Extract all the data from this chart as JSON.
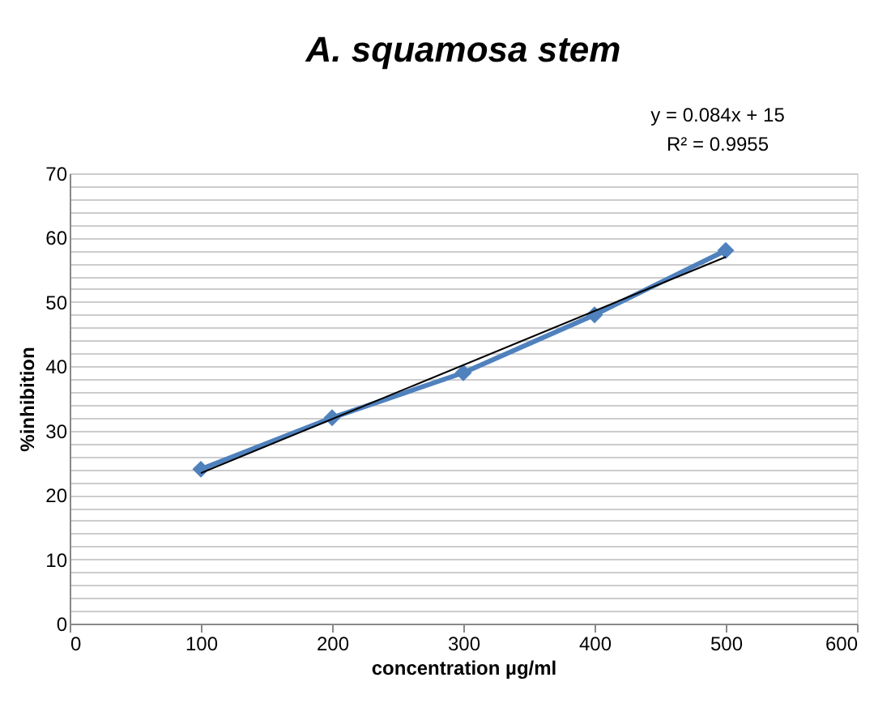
{
  "chart_data": {
    "type": "line",
    "title": "A. squamosa stem",
    "xlabel": "concentration µg/ml",
    "ylabel": "%inhibition",
    "x": [
      100,
      200,
      300,
      400,
      500
    ],
    "series": [
      {
        "color": "#4f81bd",
        "values": [
          24,
          32,
          39,
          48,
          58
        ],
        "marker": "diamond"
      },
      {
        "type": "line",
        "color": "#000000",
        "x": [
          100,
          500
        ],
        "values": [
          23.4,
          57
        ],
        "marker": "none"
      }
    ],
    "annotations": [
      "y = 0.084x + 15",
      "R² = 0.9955"
    ],
    "xlim": [
      0,
      600
    ],
    "xticks": [
      0,
      100,
      200,
      300,
      400,
      500,
      600
    ],
    "ylim": [
      0,
      70
    ],
    "yticks": [
      0,
      {
        "value": 2,
        "label": null
      },
      {
        "value": 4,
        "label": null
      },
      {
        "value": 6,
        "label": null
      },
      {
        "value": 8,
        "label": null
      },
      10,
      {
        "value": 12,
        "label": null
      },
      {
        "value": 14,
        "label": null
      },
      {
        "value": 16,
        "label": null
      },
      {
        "value": 18,
        "label": null
      },
      20,
      {
        "value": 22,
        "label": null
      },
      {
        "value": 24,
        "label": null
      },
      {
        "value": 26,
        "label": null
      },
      {
        "value": 28,
        "label": null
      },
      30,
      {
        "value": 32,
        "label": null
      },
      {
        "value": 34,
        "label": null
      },
      {
        "value": 36,
        "label": null
      },
      {
        "value": 38,
        "label": null
      },
      40,
      {
        "value": 42,
        "label": null
      },
      {
        "value": 44,
        "label": null
      },
      {
        "value": 46,
        "label": null
      },
      {
        "value": 48,
        "label": null
      },
      50,
      {
        "value": 52,
        "label": null
      },
      {
        "value": 54,
        "label": null
      },
      {
        "value": 56,
        "label": null
      },
      {
        "value": 58,
        "label": null
      },
      60,
      {
        "value": 62,
        "label": null
      },
      {
        "value": 64,
        "label": null
      },
      {
        "value": 66,
        "label": null
      },
      {
        "value": 68,
        "label": null
      },
      70
    ],
    "grid": "y"
  }
}
